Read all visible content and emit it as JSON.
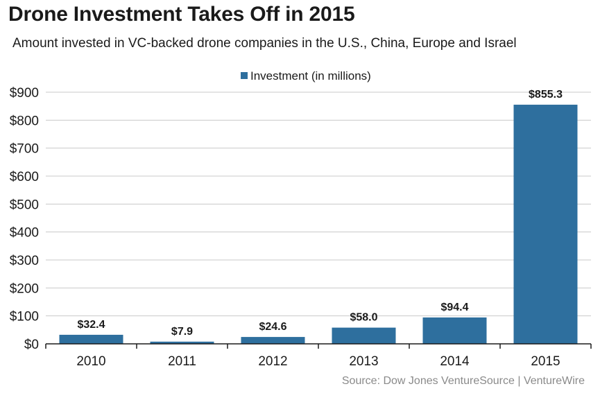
{
  "chart_data": {
    "type": "bar",
    "title": "Drone Investment Takes Off in 2015",
    "subtitle": "Amount invested in VC-backed drone companies in the U.S., China, Europe and Israel",
    "categories": [
      "2010",
      "2011",
      "2012",
      "2013",
      "2014",
      "2015"
    ],
    "series": [
      {
        "name": "Investment (in millions)",
        "values": [
          32.4,
          7.9,
          24.6,
          58.0,
          94.4,
          855.3
        ],
        "labels": [
          "$32.4",
          "$7.9",
          "$24.6",
          "$58.0",
          "$94.4",
          "$855.3"
        ]
      }
    ],
    "ylim": [
      0,
      900
    ],
    "yticks": [
      0,
      100,
      200,
      300,
      400,
      500,
      600,
      700,
      800,
      900
    ],
    "ytick_labels": [
      "$0",
      "$100",
      "$200",
      "$300",
      "$400",
      "$500",
      "$600",
      "$700",
      "$800",
      "$900"
    ],
    "grid": true,
    "legend_position": "top-center",
    "source": "Source: Dow Jones VentureSource  |  VentureWire",
    "colors": {
      "bar": "#2e6f9e",
      "grid": "#c8c8c8",
      "axis": "#1a1a1a",
      "source": "#8a8a8a"
    }
  }
}
